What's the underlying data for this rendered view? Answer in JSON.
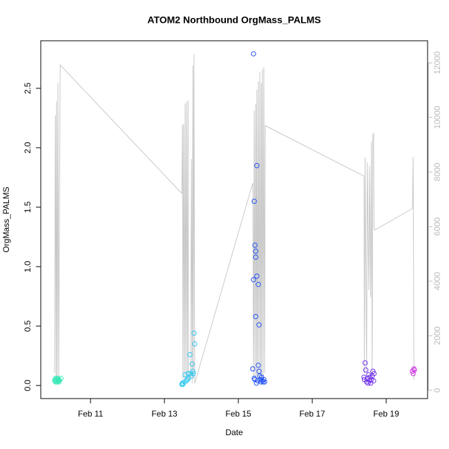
{
  "chart_data": {
    "type": "scatter",
    "title": "ATOM2 Northbound OrgMass_PALMS",
    "xlabel": "Date",
    "ylabel": "OrgMass_PALMS",
    "xlim": [
      9.654,
      20.12
    ],
    "xticks": [
      {
        "value": 11,
        "label": "Feb 11"
      },
      {
        "value": 13,
        "label": "Feb 13"
      },
      {
        "value": 15,
        "label": "Feb 15"
      },
      {
        "value": 17,
        "label": "Feb 17"
      },
      {
        "value": 19,
        "label": "Feb 19"
      }
    ],
    "ylim": [
      -0.11,
      2.9
    ],
    "yticks": [
      {
        "value": 0,
        "label": "0.0"
      },
      0.5,
      {
        "value": 1,
        "label": "1.0"
      },
      1.5,
      {
        "value": 2,
        "label": "2.0"
      },
      2.5
    ],
    "y2lim": [
      -304,
      12810
    ],
    "y2ticks": [
      0,
      2000,
      4000,
      6000,
      8000,
      10000,
      12000
    ],
    "y2_color": "#bbbbbb",
    "series": [
      {
        "type": "scatter",
        "color": "#3de8b8",
        "x": [
          10.03,
          10.04,
          10.05,
          10.06,
          10.07,
          10.08,
          10.09,
          10.1,
          10.11,
          10.12,
          10.13,
          10.14,
          10.15,
          10.16,
          10.2
        ],
        "values": [
          0.04,
          0.05,
          0.03,
          0.06,
          0.04,
          0.05,
          0.03,
          0.04,
          0.06,
          0.05,
          0.04,
          0.03,
          0.05,
          0.04,
          0.06
        ]
      },
      {
        "type": "scatter",
        "color": "#2ec8f0",
        "x": [
          13.47,
          13.49,
          13.5,
          13.54,
          13.56,
          13.6,
          13.62,
          13.64,
          13.65,
          13.69,
          13.71,
          13.73,
          13.75,
          13.77,
          13.78,
          13.8,
          13.82
        ],
        "values": [
          0.01,
          0.02,
          0.01,
          0.03,
          0.09,
          0.04,
          0.05,
          0.1,
          0.06,
          0.26,
          0.1,
          0.08,
          0.18,
          0.12,
          0.1,
          0.44,
          0.35
        ]
      },
      {
        "type": "scatter",
        "color": "#2050f5",
        "x": [
          15.39,
          15.41,
          15.41,
          15.43,
          15.43,
          15.45,
          15.45,
          15.47,
          15.47,
          15.47,
          15.49,
          15.5,
          15.5,
          15.52,
          15.54,
          15.54,
          15.56,
          15.56,
          15.58,
          15.6,
          15.62,
          15.63,
          15.65,
          15.67,
          15.69,
          15.71
        ],
        "values": [
          0.14,
          2.79,
          0.89,
          1.55,
          0.06,
          1.18,
          0.05,
          1.13,
          1.08,
          0.58,
          0.02,
          1.85,
          0.92,
          0.04,
          0.85,
          0.17,
          0.51,
          0.12,
          0.08,
          0.05,
          0.03,
          0.07,
          0.04,
          0.03,
          0.05,
          0.03
        ]
      },
      {
        "type": "scatter",
        "color": "#7030e8",
        "x": [
          18.4,
          18.41,
          18.43,
          18.45,
          18.47,
          18.49,
          18.51,
          18.53,
          18.55,
          18.56,
          18.58,
          18.6,
          18.62,
          18.64,
          18.66,
          18.67
        ],
        "values": [
          0.07,
          0.05,
          0.19,
          0.13,
          0.03,
          0.06,
          0.02,
          0.09,
          0.04,
          0.07,
          0.02,
          0.05,
          0.08,
          0.12,
          0.04,
          0.1
        ]
      },
      {
        "type": "scatter",
        "color": "#d030e8",
        "x": [
          19.71,
          19.73,
          19.75,
          19.76
        ],
        "values": [
          0.12,
          0.1,
          0.14,
          0.13
        ]
      },
      {
        "type": "line",
        "axis": "y2",
        "color": "#c8c8c8",
        "x": [
          10.03,
          10.05,
          10.07,
          10.08,
          10.1,
          10.12,
          10.14,
          10.18,
          13.47,
          13.49,
          13.5,
          13.52,
          13.54,
          13.56,
          13.58,
          13.6,
          13.62,
          13.64,
          13.65,
          13.71,
          13.73,
          13.75,
          13.77,
          13.78,
          13.8,
          13.82,
          15.39,
          15.41,
          15.43,
          15.45,
          15.47,
          15.49,
          15.5,
          15.52,
          15.54,
          15.56,
          15.58,
          15.6,
          15.62,
          15.63,
          15.65,
          15.67,
          15.69,
          15.71,
          15.73,
          18.4,
          18.41,
          18.43,
          18.47,
          18.49,
          18.53,
          18.55,
          18.58,
          18.6,
          18.62,
          18.64,
          18.66,
          18.67,
          18.69,
          19.71,
          19.73,
          19.75
        ],
        "values": [
          633,
          10076,
          380,
          10608,
          380,
          11266,
          506,
          11924,
          7215,
          9747,
          430,
          9747,
          380,
          10506,
          430,
          10582,
          506,
          10633,
          380,
          506,
          8481,
          253,
          11899,
          430,
          12329,
          253,
          7595,
          430,
          10253,
          380,
          10506,
          506,
          11013,
          430,
          11316,
          380,
          11671,
          430,
          11266,
          380,
          11772,
          430,
          11848,
          633,
          9696,
          7848,
          633,
          8532,
          633,
          8354,
          3671,
          8228,
          3418,
          9114,
          633,
          9367,
          9418,
          5949,
          5873,
          6658,
          8557,
          380
        ]
      }
    ]
  }
}
